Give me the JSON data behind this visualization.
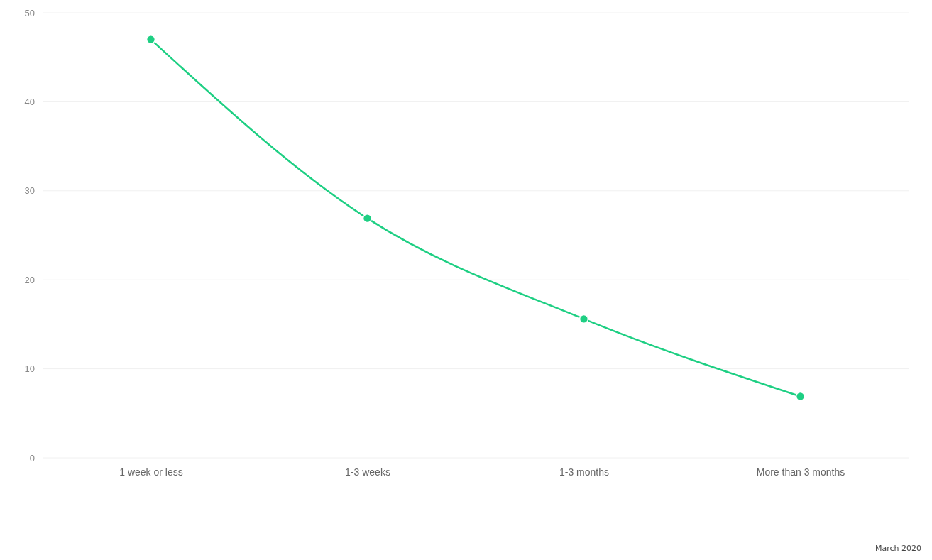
{
  "chart_data": {
    "type": "line",
    "categories": [
      "1 week or less",
      "1-3 weeks",
      "1-3 months",
      "More than 3 months"
    ],
    "series": [
      {
        "color": "#1ecf83",
        "values": [
          47,
          26.9,
          15.6,
          6.9
        ]
      }
    ],
    "ylim": [
      0,
      50
    ],
    "yticks": [
      0,
      10,
      20,
      30,
      40,
      50
    ],
    "grid": "y",
    "marker": "circle",
    "line_style": "solid",
    "annotations": [
      "March 2020"
    ]
  }
}
